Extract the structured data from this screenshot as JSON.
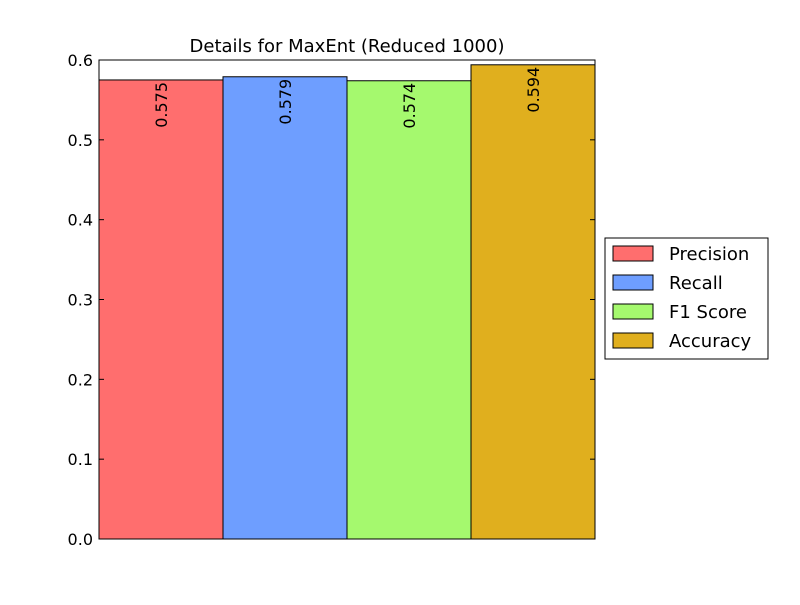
{
  "chart_data": {
    "type": "bar",
    "title": "Details for MaxEnt (Reduced 1000)",
    "xlabel": "",
    "ylabel": "",
    "ylim": [
      0.0,
      0.6
    ],
    "yticks": [
      "0.0",
      "0.1",
      "0.2",
      "0.3",
      "0.4",
      "0.5",
      "0.6"
    ],
    "grid": "horizontal dotted",
    "legend_position": "right",
    "series": [
      {
        "name": "Precision",
        "value": 0.575,
        "label": "0.575",
        "color": "#ff6e6e"
      },
      {
        "name": "Recall",
        "value": 0.579,
        "label": "0.579",
        "color": "#6e9eff"
      },
      {
        "name": "F1 Score",
        "value": 0.574,
        "label": "0.574",
        "color": "#a5f96e"
      },
      {
        "name": "Accuracy",
        "value": 0.594,
        "label": "0.594",
        "color": "#e0af1e"
      }
    ]
  }
}
